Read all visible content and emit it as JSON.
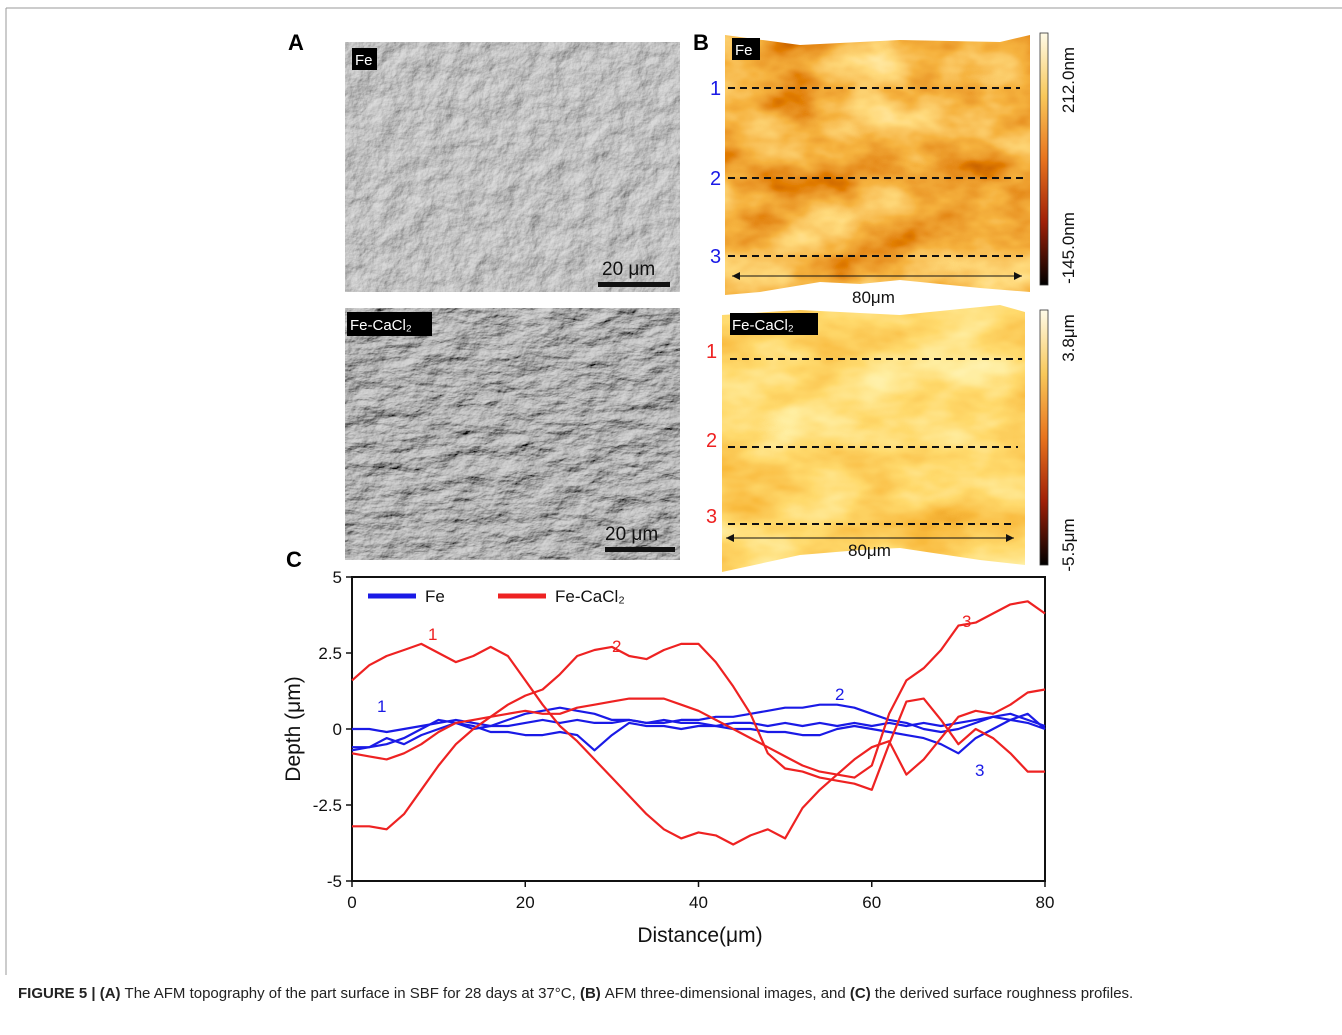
{
  "figure": {
    "panels": {
      "A": {
        "label": "A",
        "images": [
          {
            "tag": "Fe",
            "scale_bar": "20 μm"
          },
          {
            "tag": "Fe-CaCl₂",
            "scale_bar": "20 μm"
          }
        ]
      },
      "B": {
        "label": "B",
        "images": [
          {
            "tag": "Fe",
            "line_labels": [
              "1",
              "2",
              "3"
            ],
            "width_label": "80μm",
            "colorbar": [
              "212.0nm",
              "-145.0nm"
            ]
          },
          {
            "tag": "Fe-CaCl₂",
            "line_labels": [
              "1",
              "2",
              "3"
            ],
            "width_label": "80μm",
            "colorbar": [
              "3.8μm",
              "-5.5μm"
            ]
          }
        ]
      },
      "C": {
        "label": "C"
      }
    },
    "caption": {
      "figure": "FIGURE 5 |",
      "items": [
        {
          "tag": "(A)",
          "text": "The AFM topography of the part surface in SBF for 28 days at 37°C,"
        },
        {
          "tag": "(B)",
          "text": "AFM three-dimensional images, and"
        },
        {
          "tag": "(C)",
          "text": "the derived surface roughness profiles."
        }
      ]
    }
  },
  "chart_data": {
    "type": "line",
    "x_label": "Distance(μm)",
    "y_label": "Depth (μm)",
    "xlim": [
      0,
      80
    ],
    "xticks": [
      0,
      20,
      40,
      60,
      80
    ],
    "ylim": [
      -5,
      5
    ],
    "yticks": [
      -5,
      -2.5,
      0,
      2.5,
      5
    ],
    "x": [
      0,
      2,
      4,
      6,
      8,
      10,
      12,
      14,
      16,
      18,
      20,
      22,
      24,
      26,
      28,
      30,
      32,
      34,
      36,
      38,
      40,
      42,
      44,
      46,
      48,
      50,
      52,
      54,
      56,
      58,
      60,
      62,
      64,
      66,
      68,
      70,
      72,
      74,
      76,
      78,
      80
    ],
    "series": [
      {
        "name": "Fe",
        "color": "#1a1ae6",
        "profiles": [
          {
            "label": "1",
            "values": [
              0.0,
              0.0,
              -0.1,
              0.0,
              0.1,
              0.2,
              0.3,
              0.2,
              0.1,
              0.1,
              0.2,
              0.3,
              0.2,
              0.3,
              0.2,
              0.2,
              0.3,
              0.2,
              0.3,
              0.2,
              0.2,
              0.1,
              0.2,
              0.2,
              0.1,
              0.2,
              0.1,
              0.2,
              0.1,
              0.2,
              0.1,
              0.2,
              0.1,
              0.2,
              0.1,
              0.2,
              0.3,
              0.4,
              0.3,
              0.2,
              0.0
            ]
          },
          {
            "label": "2",
            "values": [
              -0.6,
              -0.6,
              -0.5,
              -0.3,
              0.0,
              0.3,
              0.2,
              0.0,
              0.1,
              0.3,
              0.5,
              0.6,
              0.7,
              0.6,
              0.5,
              0.3,
              0.3,
              0.2,
              0.2,
              0.3,
              0.3,
              0.4,
              0.4,
              0.5,
              0.6,
              0.7,
              0.7,
              0.8,
              0.8,
              0.7,
              0.5,
              0.3,
              0.2,
              0.0,
              -0.1,
              0.0,
              0.2,
              0.4,
              0.5,
              0.3,
              0.1
            ]
          },
          {
            "label": "3",
            "values": [
              -0.7,
              -0.6,
              -0.3,
              -0.5,
              -0.2,
              0.0,
              0.2,
              0.1,
              -0.1,
              -0.1,
              -0.2,
              -0.2,
              -0.1,
              -0.2,
              -0.7,
              -0.2,
              0.2,
              0.1,
              0.1,
              0.0,
              0.1,
              0.1,
              0.0,
              0.0,
              -0.1,
              -0.1,
              -0.2,
              -0.2,
              0.0,
              0.1,
              0.0,
              -0.1,
              -0.2,
              -0.3,
              -0.5,
              -0.8,
              -0.3,
              0.0,
              0.3,
              0.5,
              0.0
            ]
          }
        ]
      },
      {
        "name": "Fe-CaCl₂",
        "color": "#ee2222",
        "profiles": [
          {
            "label": "1",
            "values": [
              1.6,
              2.1,
              2.4,
              2.6,
              2.8,
              2.5,
              2.2,
              2.4,
              2.7,
              2.4,
              1.6,
              0.8,
              0.1,
              -0.4,
              -1.0,
              -1.6,
              -2.2,
              -2.8,
              -3.3,
              -3.6,
              -3.4,
              -3.5,
              -3.8,
              -3.5,
              -3.3,
              -3.6,
              -2.6,
              -2.0,
              -1.5,
              -1.0,
              -0.6,
              -0.4,
              -1.5,
              -1.0,
              -0.3,
              0.4,
              0.6,
              0.5,
              0.8,
              1.2,
              1.3
            ]
          },
          {
            "label": "2",
            "values": [
              -3.2,
              -3.2,
              -3.3,
              -2.8,
              -2.0,
              -1.2,
              -0.5,
              0.0,
              0.4,
              0.8,
              1.1,
              1.3,
              1.8,
              2.4,
              2.6,
              2.7,
              2.4,
              2.3,
              2.6,
              2.8,
              2.8,
              2.2,
              1.4,
              0.5,
              -0.8,
              -1.3,
              -1.4,
              -1.6,
              -1.7,
              -1.8,
              -2.0,
              -0.5,
              0.9,
              1.0,
              0.3,
              -0.5,
              0.0,
              -0.3,
              -0.8,
              -1.4,
              -1.4
            ]
          },
          {
            "label": "3",
            "values": [
              -0.8,
              -0.9,
              -1.0,
              -0.8,
              -0.5,
              -0.1,
              0.2,
              0.3,
              0.4,
              0.5,
              0.6,
              0.5,
              0.5,
              0.7,
              0.8,
              0.9,
              1.0,
              1.0,
              1.0,
              0.8,
              0.6,
              0.3,
              0.0,
              -0.3,
              -0.6,
              -0.9,
              -1.2,
              -1.4,
              -1.5,
              -1.6,
              -1.2,
              0.5,
              1.6,
              2.0,
              2.6,
              3.4,
              3.5,
              3.8,
              4.1,
              4.2,
              3.8
            ]
          }
        ]
      }
    ]
  }
}
